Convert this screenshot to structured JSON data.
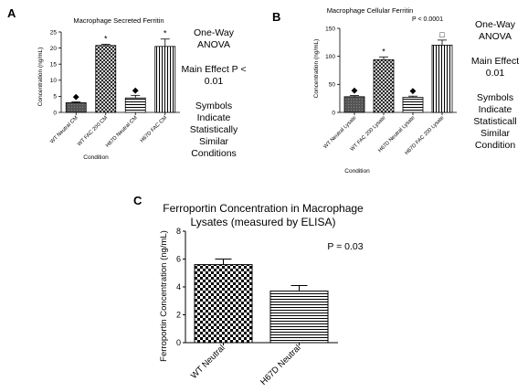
{
  "panels": {
    "a": {
      "letter": "A",
      "notes": [
        "One-Way",
        "ANOVA",
        "",
        "Main Effect P <",
        "0.01",
        "",
        "Symbols",
        "Indicate",
        "Statistically",
        "Similar",
        "Conditions"
      ]
    },
    "b": {
      "letter": "B",
      "p_value_label": "P < 0.0001",
      "notes": [
        "One-Way",
        "ANOVA",
        "",
        "Main Effect",
        "0.01",
        "",
        "Symbols",
        "Indicate",
        "Statisticall",
        "Similar",
        "Condition"
      ]
    },
    "c": {
      "letter": "C",
      "p_value_label": "P = 0.03"
    }
  },
  "chart_data": [
    {
      "id": "a",
      "type": "bar",
      "title": "Macrophage Secreted Ferritin",
      "xlabel": "Condition",
      "ylabel": "Concentration (ng/mL)",
      "ylim": [
        0,
        25
      ],
      "yticks": [
        "0",
        "5",
        "10",
        "15",
        "20",
        "25"
      ],
      "categories": [
        "WT Neutral CM",
        "WT FAC 200 CM",
        "H67D Neutral CM",
        "H67D FAC CM"
      ],
      "values": [
        3.0,
        20.8,
        4.5,
        20.5
      ],
      "errors": [
        0.3,
        0.4,
        0.8,
        2.3
      ],
      "patterns": [
        "dark",
        "crosshatch",
        "horizontal",
        "vertical"
      ],
      "symbols": [
        "◆",
        "*",
        "◆",
        "*"
      ],
      "grid": false
    },
    {
      "id": "b",
      "type": "bar",
      "title": "Macrophage Cellular Ferritin",
      "xlabel": "Condition",
      "ylabel": "Concentration (ng/mL)",
      "ylim": [
        0,
        150
      ],
      "yticks": [
        "0",
        "50",
        "100",
        "150"
      ],
      "categories": [
        "WT Neutral Lysate",
        "WT FAC 200 Lysate",
        "H67D Neutral Lysate",
        "H67D FAC 200 Lysate"
      ],
      "values": [
        28,
        94,
        27,
        120
      ],
      "errors": [
        2,
        5,
        2,
        9
      ],
      "patterns": [
        "dark",
        "crosshatch",
        "horizontal",
        "vertical"
      ],
      "symbols": [
        "◆",
        "*",
        "◆",
        "□"
      ],
      "grid": false
    },
    {
      "id": "c",
      "type": "bar",
      "title": "Ferroportin Concentration in Macrophage",
      "subtitle": "Lysates (measured by ELISA)",
      "xlabel": "",
      "ylabel": "Ferroportin Concentration (ng/mL)",
      "ylim": [
        0,
        8
      ],
      "yticks": [
        "0",
        "2",
        "4",
        "6",
        "8"
      ],
      "categories": [
        "WT Neutral",
        "H67D Neutral"
      ],
      "values": [
        5.6,
        3.7
      ],
      "errors": [
        0.4,
        0.4
      ],
      "patterns": [
        "checker",
        "horizontal"
      ],
      "symbols": [
        "",
        ""
      ],
      "grid": false
    }
  ]
}
